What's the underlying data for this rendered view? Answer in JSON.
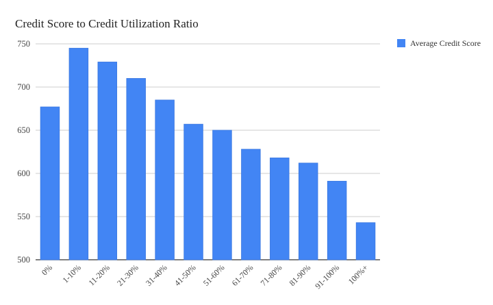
{
  "chart_data": {
    "type": "bar",
    "title": "Credit Score to Credit Utilization Ratio",
    "xlabel": "",
    "ylabel": "",
    "categories": [
      "0%",
      "1-10%",
      "11-20%",
      "21-30%",
      "31-40%",
      "41-50%",
      "51-60%",
      "61-70%",
      "71-80%",
      "81-90%",
      "91-100%",
      "100%+"
    ],
    "series": [
      {
        "name": "Average Credit Score",
        "values": [
          677,
          745,
          729,
          710,
          685,
          657,
          650,
          628,
          618,
          612,
          591,
          543
        ]
      }
    ],
    "ylim": [
      500,
      750
    ],
    "yticks": [
      "500",
      "550",
      "600",
      "650",
      "700",
      "750"
    ],
    "grid": true,
    "legend_position": "right",
    "colors": {
      "bar": "#4285f4",
      "grid": "#cccccc",
      "axis": "#333333"
    }
  }
}
